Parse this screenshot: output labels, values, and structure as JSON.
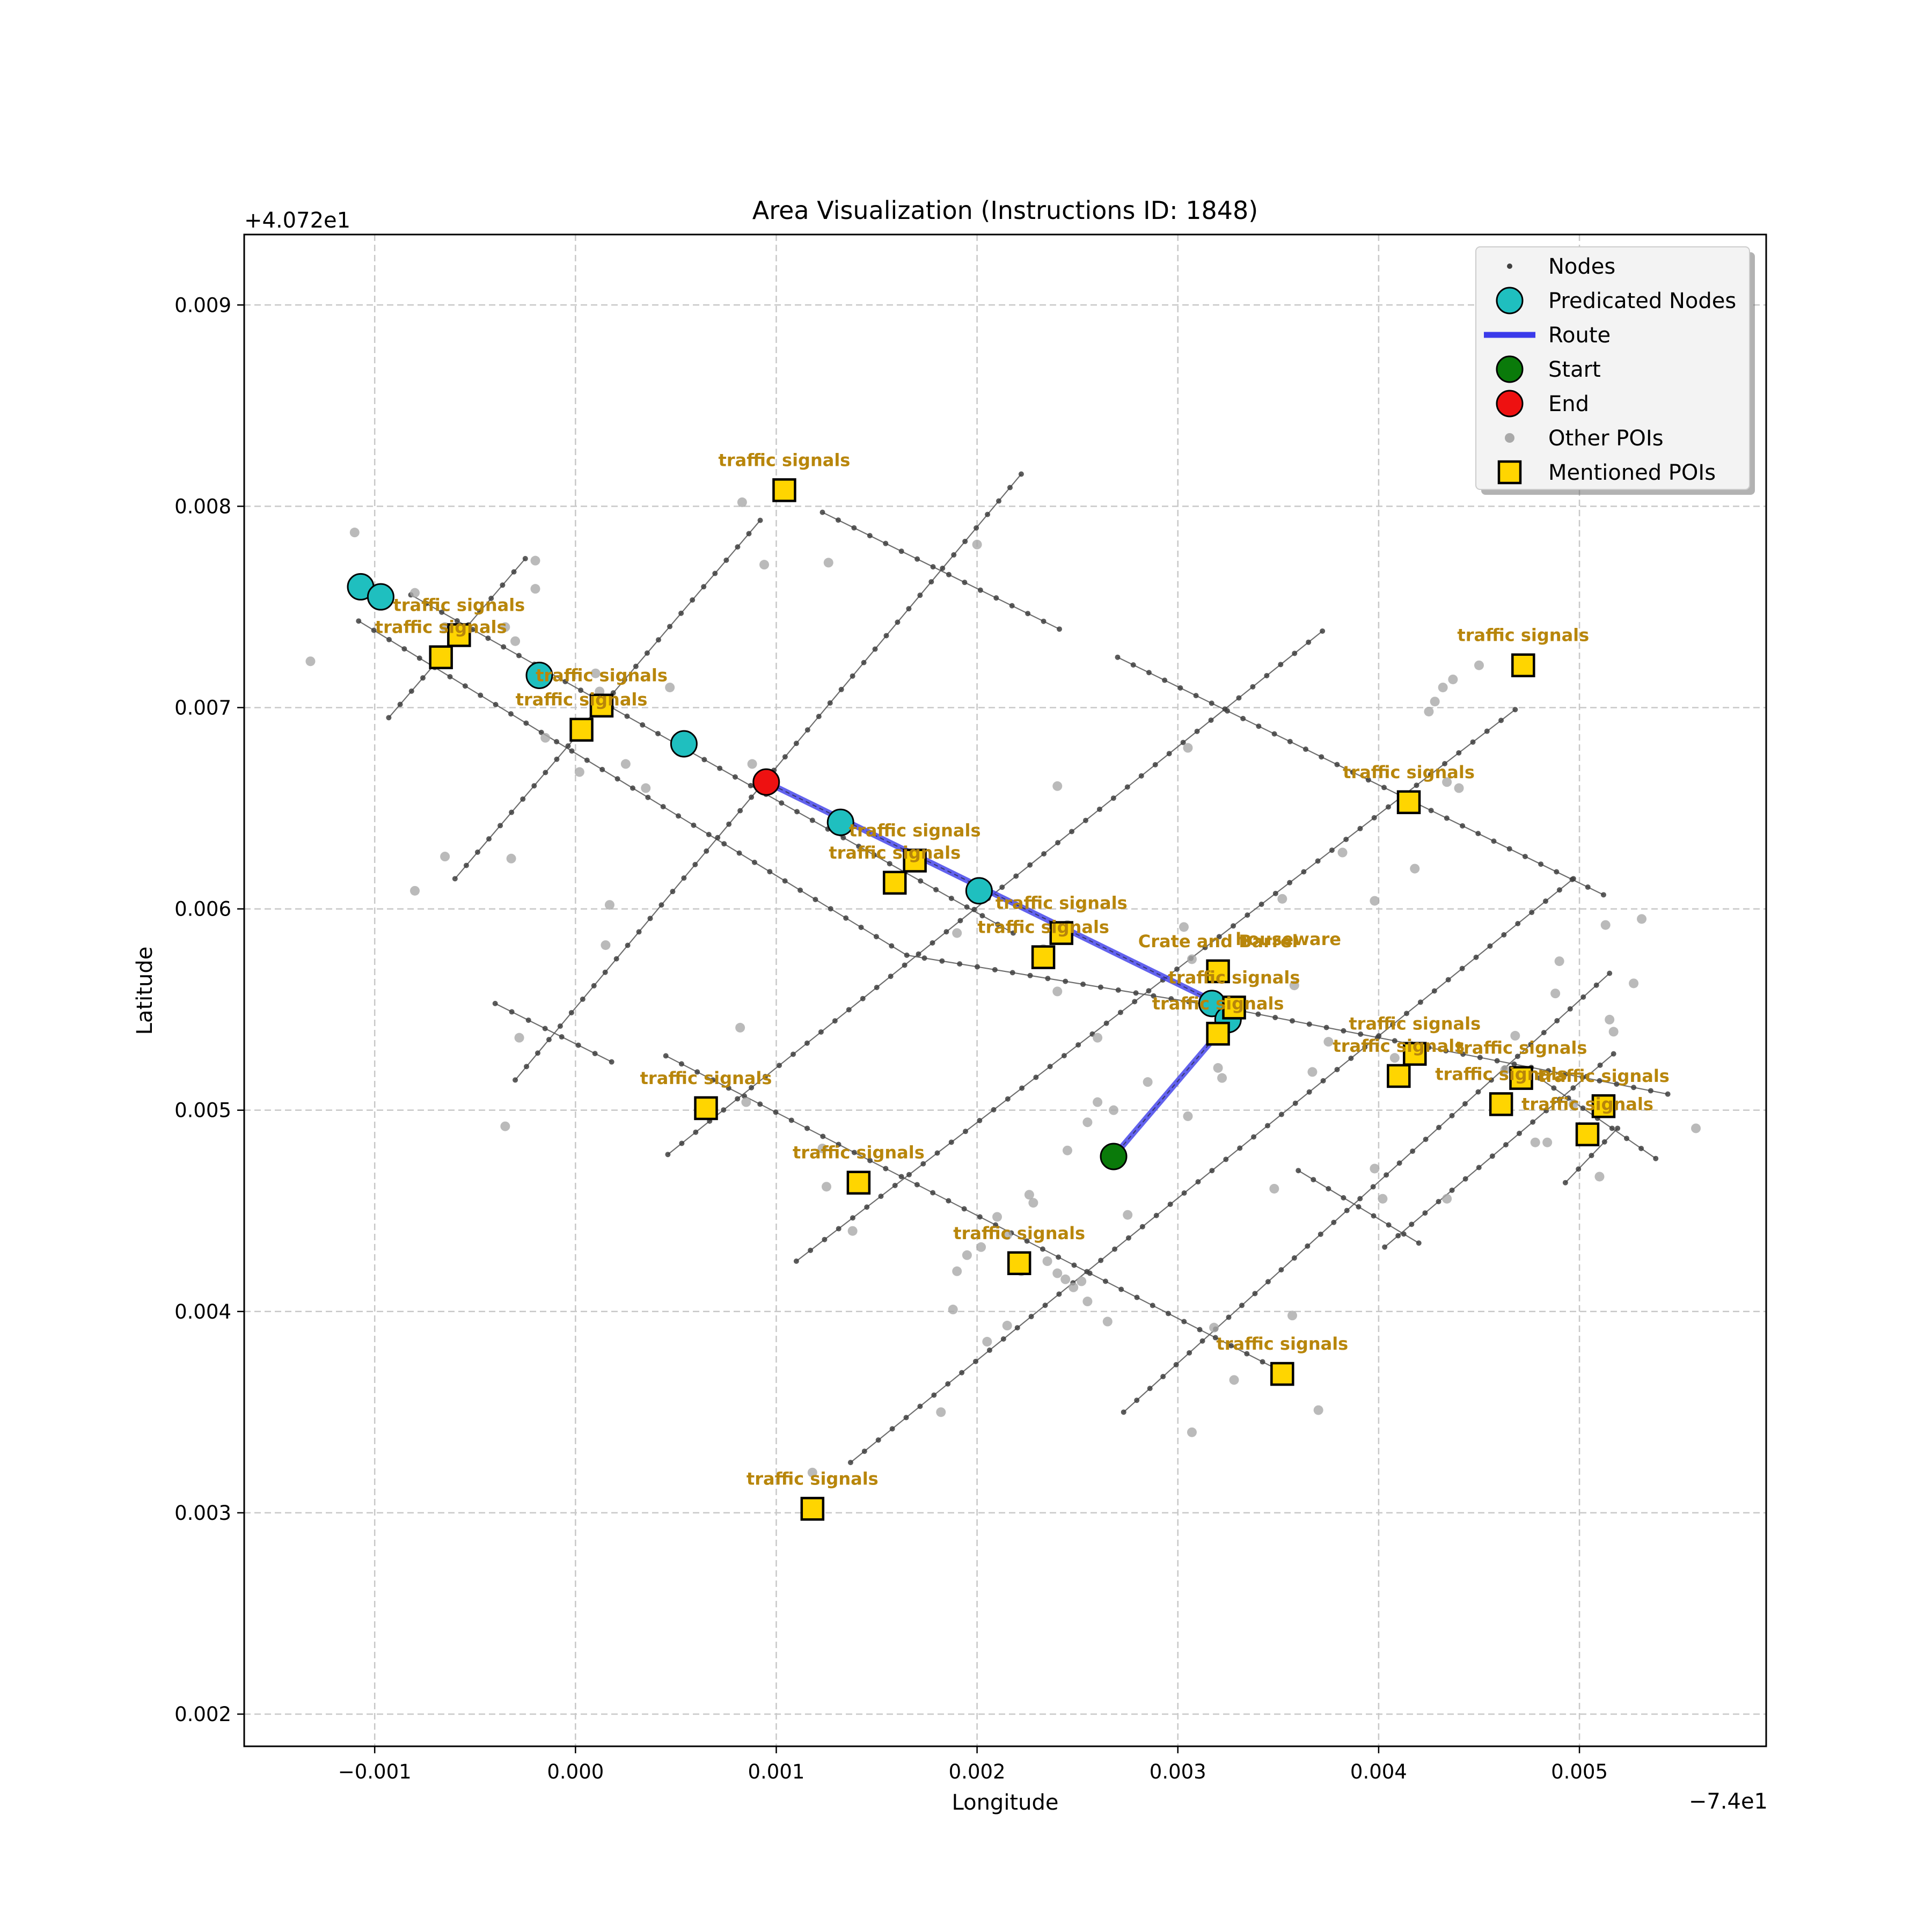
{
  "chart_data": {
    "type": "scatter",
    "title": "Area Visualization (Instructions ID: 1848)",
    "xlabel": "Longitude",
    "ylabel": "Latitude",
    "x_offset_label": "−7.4e1",
    "y_offset_label": "+4.072e1",
    "x_offset": -74,
    "y_offset": 40.72,
    "xlim": [
      -0.00165,
      0.00593
    ],
    "ylim": [
      0.00184,
      0.00935
    ],
    "x_ticks": [
      -0.001,
      0.0,
      0.001,
      0.002,
      0.003,
      0.004,
      0.005
    ],
    "x_tick_labels": [
      "−0.001",
      "0.000",
      "0.001",
      "0.002",
      "0.003",
      "0.004",
      "0.005"
    ],
    "y_ticks": [
      0.002,
      0.003,
      0.004,
      0.005,
      0.006,
      0.007,
      0.008,
      0.009
    ],
    "y_tick_labels": [
      "0.002",
      "0.003",
      "0.004",
      "0.005",
      "0.006",
      "0.007",
      "0.008",
      "0.009"
    ],
    "grid": true,
    "legend_position": "top-right",
    "legend": [
      {
        "key": "nodes",
        "label": "Nodes"
      },
      {
        "key": "predicated",
        "label": "Predicated Nodes"
      },
      {
        "key": "route",
        "label": "Route"
      },
      {
        "key": "start",
        "label": "Start"
      },
      {
        "key": "end",
        "label": "End"
      },
      {
        "key": "other_pois",
        "label": "Other POIs"
      },
      {
        "key": "mentioned_pois",
        "label": "Mentioned POIs"
      }
    ],
    "colors": {
      "nodes": "#404040",
      "edges": "#555555",
      "predicated": "#1fbfbf",
      "route": "#3b3bea",
      "start": "#0a7a0a",
      "end": "#ee1111",
      "other_pois": "#a9a9a9",
      "mentioned_pois": "#ffd500",
      "poi_label": "#b8860b",
      "grid": "#c8c8c8"
    },
    "streets": [
      [
        [
          -0.00108,
          0.00743
        ],
        [
          0.00165,
          0.00577
        ],
        [
          0.00323,
          0.00551
        ],
        [
          0.00544,
          0.00508
        ]
      ],
      [
        [
          -0.00082,
          0.00756
        ],
        [
          0.00218,
          0.00588
        ]
      ],
      [
        [
          0.00123,
          0.00797
        ],
        [
          0.00241,
          0.00739
        ]
      ],
      [
        [
          0.0027,
          0.00725
        ],
        [
          0.00512,
          0.00607
        ]
      ],
      [
        [
          -0.0004,
          0.00553
        ],
        [
          0.00018,
          0.00524
        ]
      ],
      [
        [
          0.00045,
          0.00527
        ],
        [
          0.0035,
          0.00371
        ]
      ],
      [
        [
          0.0036,
          0.0047
        ],
        [
          0.0042,
          0.00434
        ]
      ],
      [
        [
          0.0048,
          0.00516
        ],
        [
          0.00538,
          0.00476
        ]
      ],
      [
        [
          -0.00093,
          0.00695
        ],
        [
          -0.00025,
          0.00774
        ]
      ],
      [
        [
          -0.0006,
          0.00615
        ],
        [
          0.00092,
          0.00793
        ]
      ],
      [
        [
          -0.0003,
          0.00515
        ],
        [
          0.00222,
          0.00816
        ]
      ],
      [
        [
          0.00046,
          0.00478
        ],
        [
          0.00372,
          0.00738
        ]
      ],
      [
        [
          0.0011,
          0.00425
        ],
        [
          0.00468,
          0.00699
        ]
      ],
      [
        [
          0.00137,
          0.00325
        ],
        [
          0.00497,
          0.00615
        ]
      ],
      [
        [
          0.00273,
          0.0035
        ],
        [
          0.00515,
          0.00568
        ]
      ],
      [
        [
          0.00403,
          0.00432
        ],
        [
          0.00517,
          0.00528
        ]
      ],
      [
        [
          0.00493,
          0.00464
        ],
        [
          0.00519,
          0.00491
        ]
      ]
    ],
    "route": [
      [
        0.00268,
        0.00477
      ],
      [
        0.0032,
        0.00538
      ],
      [
        0.0032,
        0.00553
      ],
      [
        0.00095,
        0.00663
      ]
    ],
    "predicated_nodes": [
      [
        -0.00107,
        0.0076
      ],
      [
        -0.00097,
        0.00755
      ],
      [
        -0.00018,
        0.00716
      ],
      [
        0.00054,
        0.00682
      ],
      [
        0.00132,
        0.00643
      ],
      [
        0.00201,
        0.00609
      ],
      [
        0.00317,
        0.00553
      ],
      [
        0.00325,
        0.00545
      ]
    ],
    "start": [
      0.00268,
      0.00477
    ],
    "end": [
      0.00095,
      0.00663
    ],
    "other_pois": [
      [
        -0.0011,
        0.00787
      ],
      [
        -0.00132,
        0.00723
      ],
      [
        -0.0008,
        0.00757
      ],
      [
        -0.00065,
        0.0074
      ],
      [
        -0.0002,
        0.00773
      ],
      [
        -0.0002,
        0.00759
      ],
      [
        -0.00035,
        0.0074
      ],
      [
        -0.0003,
        0.00733
      ],
      [
        0.0001,
        0.00717
      ],
      [
        0.00012,
        0.00708
      ],
      [
        0.00047,
        0.0071
      ],
      [
        -0.00015,
        0.00685
      ],
      [
        0.00025,
        0.00672
      ],
      [
        2e-05,
        0.00668
      ],
      [
        0.00035,
        0.0066
      ],
      [
        -0.00065,
        0.00626
      ],
      [
        -0.00032,
        0.00625
      ],
      [
        -0.0008,
        0.00609
      ],
      [
        0.00017,
        0.00602
      ],
      [
        0.00015,
        0.00582
      ],
      [
        0.00083,
        0.00802
      ],
      [
        0.00094,
        0.00771
      ],
      [
        0.00126,
        0.00772
      ],
      [
        0.002,
        0.00781
      ],
      [
        0.00088,
        0.00672
      ],
      [
        0.0024,
        0.00661
      ],
      [
        -0.00035,
        0.00492
      ],
      [
        -0.00028,
        0.00536
      ],
      [
        0.00082,
        0.00541
      ],
      [
        0.00085,
        0.00504
      ],
      [
        0.00123,
        0.00481
      ],
      [
        0.00125,
        0.00462
      ],
      [
        0.00138,
        0.0044
      ],
      [
        0.0019,
        0.00588
      ],
      [
        0.00233,
        0.0058
      ],
      [
        0.00245,
        0.00592
      ],
      [
        0.0024,
        0.00559
      ],
      [
        0.0026,
        0.00536
      ],
      [
        0.00285,
        0.00514
      ],
      [
        0.00255,
        0.00494
      ],
      [
        0.00245,
        0.0048
      ],
      [
        0.0026,
        0.00504
      ],
      [
        0.00303,
        0.00591
      ],
      [
        0.00305,
        0.0068
      ],
      [
        0.00305,
        0.00497
      ],
      [
        0.00307,
        0.00575
      ],
      [
        0.0032,
        0.00521
      ],
      [
        0.00322,
        0.00516
      ],
      [
        0.00352,
        0.00605
      ],
      [
        0.00358,
        0.00562
      ],
      [
        0.00367,
        0.00519
      ],
      [
        0.00375,
        0.00534
      ],
      [
        0.00382,
        0.00628
      ],
      [
        0.00398,
        0.00604
      ],
      [
        0.00408,
        0.00526
      ],
      [
        0.00418,
        0.0062
      ],
      [
        0.00398,
        0.00471
      ],
      [
        0.00402,
        0.00456
      ],
      [
        0.00425,
        0.00698
      ],
      [
        0.00428,
        0.00703
      ],
      [
        0.00432,
        0.0071
      ],
      [
        0.00437,
        0.00714
      ],
      [
        0.0045,
        0.00721
      ],
      [
        0.00434,
        0.00663
      ],
      [
        0.0044,
        0.0066
      ],
      [
        0.00463,
        0.0052
      ],
      [
        0.00468,
        0.00537
      ],
      [
        0.00478,
        0.00484
      ],
      [
        0.00484,
        0.00484
      ],
      [
        0.00488,
        0.00558
      ],
      [
        0.00497,
        0.00503
      ],
      [
        0.00505,
        0.00488
      ],
      [
        0.0049,
        0.00574
      ],
      [
        0.0051,
        0.00467
      ],
      [
        0.00513,
        0.00592
      ],
      [
        0.00515,
        0.00545
      ],
      [
        0.00517,
        0.00539
      ],
      [
        0.00527,
        0.00563
      ],
      [
        0.00531,
        0.00595
      ],
      [
        0.00558,
        0.00491
      ],
      [
        0.00434,
        0.00456
      ],
      [
        0.0019,
        0.0042
      ],
      [
        0.00195,
        0.00428
      ],
      [
        0.00202,
        0.00432
      ],
      [
        0.0021,
        0.00447
      ],
      [
        0.00215,
        0.00438
      ],
      [
        0.00222,
        0.0042
      ],
      [
        0.00226,
        0.00458
      ],
      [
        0.00228,
        0.00454
      ],
      [
        0.00235,
        0.00425
      ],
      [
        0.0024,
        0.00419
      ],
      [
        0.00244,
        0.00416
      ],
      [
        0.00248,
        0.00412
      ],
      [
        0.00252,
        0.00415
      ],
      [
        0.00188,
        0.00401
      ],
      [
        0.00205,
        0.00385
      ],
      [
        0.00215,
        0.00393
      ],
      [
        0.00255,
        0.00405
      ],
      [
        0.00265,
        0.00395
      ],
      [
        0.00275,
        0.00448
      ],
      [
        0.00182,
        0.0035
      ],
      [
        0.00118,
        0.0032
      ],
      [
        0.00307,
        0.0034
      ],
      [
        0.00318,
        0.00392
      ],
      [
        0.00328,
        0.00366
      ],
      [
        0.00348,
        0.00461
      ],
      [
        0.00357,
        0.00398
      ],
      [
        0.0037,
        0.00351
      ],
      [
        0.00268,
        0.005
      ]
    ],
    "mentioned_pois": [
      {
        "x": 0.00104,
        "y": 0.00808,
        "label": "traffic signals"
      },
      {
        "x": -0.00058,
        "y": 0.00736,
        "label": "traffic signals"
      },
      {
        "x": -0.00067,
        "y": 0.00725,
        "label": "traffic signals"
      },
      {
        "x": 0.00013,
        "y": 0.00701,
        "label": "traffic signals"
      },
      {
        "x": 3e-05,
        "y": 0.00689,
        "label": "traffic signals"
      },
      {
        "x": 0.00472,
        "y": 0.00721,
        "label": "traffic signals"
      },
      {
        "x": 0.00415,
        "y": 0.00653,
        "label": "traffic signals"
      },
      {
        "x": 0.00169,
        "y": 0.00624,
        "label": "traffic signals"
      },
      {
        "x": 0.00159,
        "y": 0.00613,
        "label": "traffic signals"
      },
      {
        "x": 0.00242,
        "y": 0.00588,
        "label": "traffic signals"
      },
      {
        "x": 0.00233,
        "y": 0.00576,
        "label": "traffic signals"
      },
      {
        "x": 0.0032,
        "y": 0.00569,
        "label": "Crate and Barrel"
      },
      {
        "x": 0.00328,
        "y": 0.00551,
        "label": "traffic signals"
      },
      {
        "x": 0.0032,
        "y": 0.00538,
        "label": "traffic signals"
      },
      {
        "x": 0.00418,
        "y": 0.00528,
        "label": "traffic signals"
      },
      {
        "x": 0.0041,
        "y": 0.00517,
        "label": "traffic signals"
      },
      {
        "x": 0.00471,
        "y": 0.00516,
        "label": "traffic signals"
      },
      {
        "x": 0.00461,
        "y": 0.00503,
        "label": "traffic signals"
      },
      {
        "x": 0.00512,
        "y": 0.00502,
        "label": "traffic signals"
      },
      {
        "x": 0.00504,
        "y": 0.00488,
        "label": "traffic signals"
      },
      {
        "x": 0.00065,
        "y": 0.00501,
        "label": "traffic signals"
      },
      {
        "x": 0.00141,
        "y": 0.00464,
        "label": "traffic signals"
      },
      {
        "x": 0.00221,
        "y": 0.00424,
        "label": "traffic signals"
      },
      {
        "x": 0.00352,
        "y": 0.00369,
        "label": "traffic signals"
      },
      {
        "x": 0.00118,
        "y": 0.00302,
        "label": "traffic signals"
      }
    ],
    "text_annotations": [
      {
        "x": 0.00355,
        "y": 0.00582,
        "text": "houseware"
      }
    ]
  }
}
